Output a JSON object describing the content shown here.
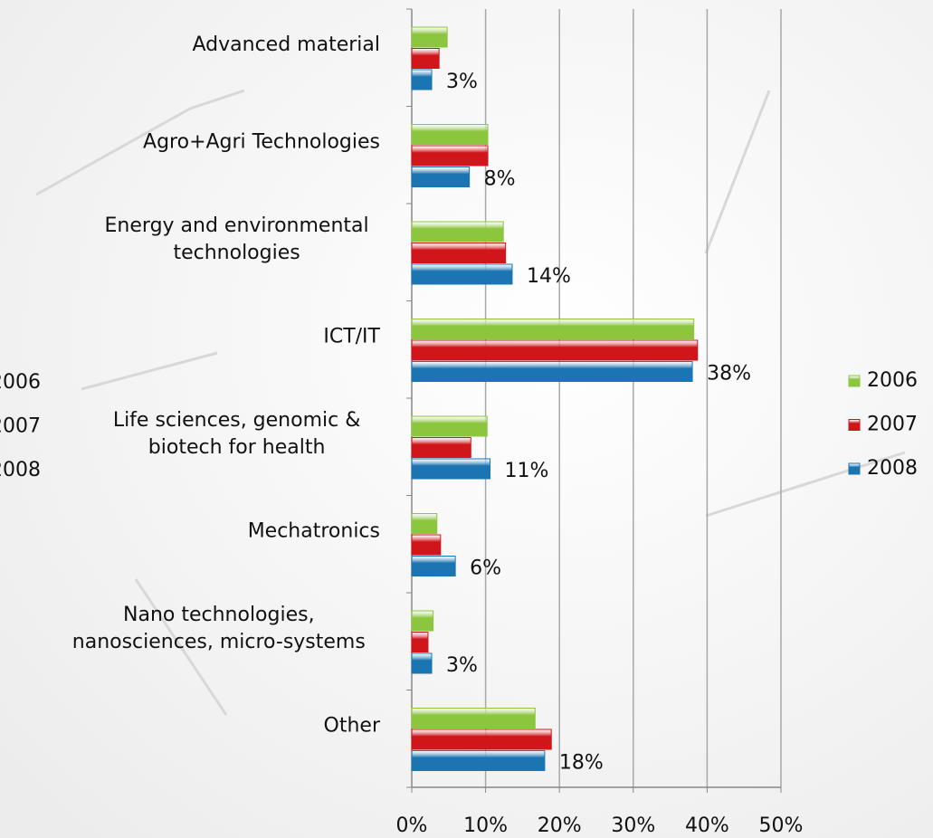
{
  "chart_data": {
    "type": "barh",
    "categories": [
      "Advanced material",
      "Agro+Agri Technologies",
      "Energy and environmental\ntechnologies",
      "ICT/IT",
      "Life sciences, genomic &\nbiotech for health",
      "Mechatronics",
      "Nano technologies,\nnanosciences, micro-systems",
      "Other"
    ],
    "series": [
      {
        "name": "2006",
        "color": "#8cc63e",
        "values": [
          4.8,
          10.3,
          12.4,
          38.2,
          10.2,
          3.4,
          2.9,
          16.7
        ]
      },
      {
        "name": "2007",
        "color": "#d0161b",
        "values": [
          3.7,
          10.3,
          12.7,
          38.7,
          8.0,
          3.9,
          2.2,
          18.9
        ]
      },
      {
        "name": "2008",
        "color": "#1b75b3",
        "values": [
          2.7,
          7.8,
          13.6,
          38.0,
          10.6,
          5.9,
          2.7,
          18.0
        ],
        "value_labels": [
          "3%",
          "8%",
          "14%",
          "38%",
          "11%",
          "6%",
          "3%",
          "18%"
        ]
      }
    ],
    "xlim": [
      0,
      50
    ],
    "xticks": [
      {
        "value": 0,
        "label": "0%"
      },
      {
        "value": 10,
        "label": "10%"
      },
      {
        "value": 20,
        "label": "20%"
      },
      {
        "value": 30,
        "label": "30%"
      },
      {
        "value": 40,
        "label": "40%"
      },
      {
        "value": 50,
        "label": "50%"
      }
    ],
    "grid": true,
    "legend": "right"
  }
}
